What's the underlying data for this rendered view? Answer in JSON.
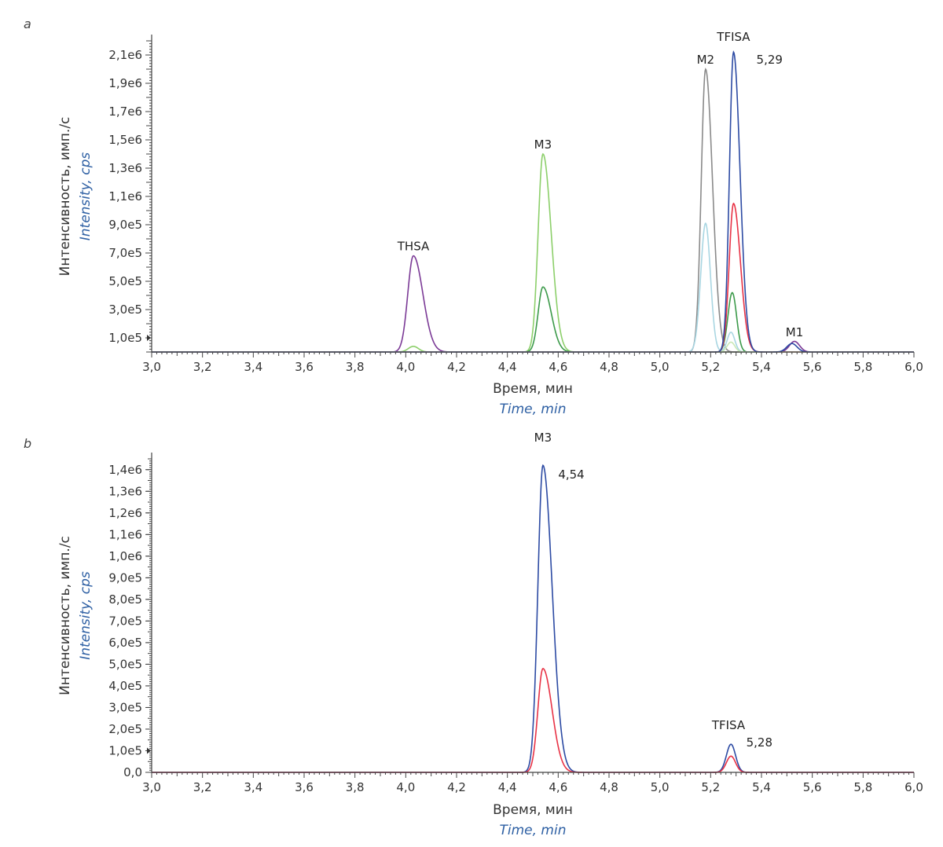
{
  "chart_data": [
    {
      "panel": "a",
      "type": "line",
      "xlabel_ru": "Время, мин",
      "xlabel_en": "Time, min",
      "ylabel_ru": "Интенсивность, имп./с",
      "ylabel_en": "Intensity, cps",
      "xlim": [
        3.0,
        6.0
      ],
      "ylim": [
        0,
        2200000
      ],
      "x_ticks": [
        {
          "v": 3.0,
          "label": "3,0"
        },
        {
          "v": 3.2,
          "label": "3,2"
        },
        {
          "v": 3.4,
          "label": "3,4"
        },
        {
          "v": 3.6,
          "label": "3,6"
        },
        {
          "v": 3.8,
          "label": "3,8"
        },
        {
          "v": 4.0,
          "label": "4,0"
        },
        {
          "v": 4.2,
          "label": "4,2"
        },
        {
          "v": 4.4,
          "label": "4,4"
        },
        {
          "v": 4.6,
          "label": "4,6"
        },
        {
          "v": 4.8,
          "label": "4,8"
        },
        {
          "v": 5.0,
          "label": "5,0"
        },
        {
          "v": 5.2,
          "label": "5,2"
        },
        {
          "v": 5.4,
          "label": "5,4"
        },
        {
          "v": 5.6,
          "label": "5,6"
        },
        {
          "v": 5.8,
          "label": "5,8"
        },
        {
          "v": 6.0,
          "label": "6,0"
        }
      ],
      "y_ticks": [
        {
          "v": 100000,
          "label": "1,0e5"
        },
        {
          "v": 300000,
          "label": "3,0e5"
        },
        {
          "v": 500000,
          "label": "5,0e5"
        },
        {
          "v": 700000,
          "label": "7,0e5"
        },
        {
          "v": 900000,
          "label": "9,0e5"
        },
        {
          "v": 1100000,
          "label": "1,1e6"
        },
        {
          "v": 1300000,
          "label": "1,3e6"
        },
        {
          "v": 1500000,
          "label": "1,5e6"
        },
        {
          "v": 1700000,
          "label": "1,7e6"
        },
        {
          "v": 1900000,
          "label": "1,9e6"
        },
        {
          "v": 2100000,
          "label": "2,1e6"
        }
      ],
      "series": [
        {
          "color": "#7b3a96",
          "peaks": [
            {
              "x": 4.03,
              "h": 680000,
              "w": 0.022,
              "tail": 0.7
            },
            {
              "x": 5.53,
              "h": 75000,
              "w": 0.02
            }
          ]
        },
        {
          "color": "#8ccf6a",
          "peaks": [
            {
              "x": 4.03,
              "h": 40000,
              "w": 0.02
            },
            {
              "x": 4.54,
              "h": 1400000,
              "w": 0.019,
              "tail": 0.7
            }
          ]
        },
        {
          "color": "#3c9a4a",
          "peaks": [
            {
              "x": 4.54,
              "h": 460000,
              "w": 0.019,
              "tail": 0.7
            },
            {
              "x": 5.285,
              "h": 420000,
              "w": 0.017
            }
          ]
        },
        {
          "color": "#8a8a8a",
          "peaks": [
            {
              "x": 5.18,
              "h": 2000000,
              "w": 0.017,
              "tail": 0.6
            }
          ]
        },
        {
          "color": "#a9d6e2",
          "peaks": [
            {
              "x": 5.18,
              "h": 910000,
              "w": 0.019
            },
            {
              "x": 5.28,
              "h": 140000,
              "w": 0.015
            }
          ]
        },
        {
          "color": "#e83245",
          "peaks": [
            {
              "x": 5.29,
              "h": 1050000,
              "w": 0.017,
              "tail": 0.6
            }
          ]
        },
        {
          "color": "#c9e8b6",
          "peaks": [
            {
              "x": 5.28,
              "h": 70000,
              "w": 0.015
            }
          ]
        },
        {
          "color": "#2c4aa3",
          "peaks": [
            {
              "x": 5.29,
              "h": 2120000,
              "w": 0.016,
              "tail": 0.6
            },
            {
              "x": 5.52,
              "h": 60000,
              "w": 0.02
            }
          ]
        }
      ],
      "annotations": [
        {
          "text": "THSA",
          "x": 4.03,
          "y": 720000
        },
        {
          "text": "M3",
          "x": 4.54,
          "y": 1440000
        },
        {
          "text": "M2",
          "x": 5.18,
          "y": 2040000
        },
        {
          "text": "TFISA",
          "x": 5.29,
          "y": 2200000
        },
        {
          "text": "5,29",
          "x": 5.38,
          "y": 2040000,
          "kind": "rt"
        },
        {
          "text": "M1",
          "x": 5.53,
          "y": 110000
        }
      ]
    },
    {
      "panel": "b",
      "type": "line",
      "xlabel_ru": "Время, мин",
      "xlabel_en": "Time, min",
      "ylabel_ru": "Интенсивность, имп./с",
      "ylabel_en": "Intensity, cps",
      "xlim": [
        3.0,
        6.0
      ],
      "ylim": [
        0,
        1450000
      ],
      "x_ticks": [
        {
          "v": 3.0,
          "label": "3,0"
        },
        {
          "v": 3.2,
          "label": "3,2"
        },
        {
          "v": 3.4,
          "label": "3,4"
        },
        {
          "v": 3.6,
          "label": "3,6"
        },
        {
          "v": 3.8,
          "label": "3,8"
        },
        {
          "v": 4.0,
          "label": "4,0"
        },
        {
          "v": 4.2,
          "label": "4,2"
        },
        {
          "v": 4.4,
          "label": "4,4"
        },
        {
          "v": 4.6,
          "label": "4,6"
        },
        {
          "v": 4.8,
          "label": "4,8"
        },
        {
          "v": 5.0,
          "label": "5,0"
        },
        {
          "v": 5.2,
          "label": "5,2"
        },
        {
          "v": 5.4,
          "label": "5,4"
        },
        {
          "v": 5.6,
          "label": "5,6"
        },
        {
          "v": 5.8,
          "label": "5,8"
        },
        {
          "v": 6.0,
          "label": "6,0"
        }
      ],
      "y_ticks": [
        {
          "v": 0,
          "label": "0,0"
        },
        {
          "v": 100000,
          "label": "1,0e5"
        },
        {
          "v": 200000,
          "label": "2,0e5"
        },
        {
          "v": 300000,
          "label": "3,0e5"
        },
        {
          "v": 400000,
          "label": "4,0e5"
        },
        {
          "v": 500000,
          "label": "5,0e5"
        },
        {
          "v": 600000,
          "label": "6,0e5"
        },
        {
          "v": 700000,
          "label": "7,0e5"
        },
        {
          "v": 800000,
          "label": "8,0e5"
        },
        {
          "v": 900000,
          "label": "9,0e5"
        },
        {
          "v": 1000000,
          "label": "1,0e6"
        },
        {
          "v": 1100000,
          "label": "1,1e6"
        },
        {
          "v": 1200000,
          "label": "1,2e6"
        },
        {
          "v": 1300000,
          "label": "1,3e6"
        },
        {
          "v": 1400000,
          "label": "1,4e6"
        }
      ],
      "series": [
        {
          "color": "#2c4aa3",
          "peaks": [
            {
              "x": 4.54,
              "h": 1420000,
              "w": 0.02,
              "tail": 0.8
            },
            {
              "x": 5.28,
              "h": 130000,
              "w": 0.018
            }
          ]
        },
        {
          "color": "#e83245",
          "peaks": [
            {
              "x": 4.54,
              "h": 480000,
              "w": 0.02,
              "tail": 0.8
            },
            {
              "x": 5.28,
              "h": 75000,
              "w": 0.018
            }
          ]
        }
      ],
      "annotations": [
        {
          "text": "M3",
          "x": 4.54,
          "y": 1530000
        },
        {
          "text": "4,54",
          "x": 4.6,
          "y": 1360000,
          "kind": "rt"
        },
        {
          "text": "TFISA",
          "x": 5.27,
          "y": 200000
        },
        {
          "text": "5,28",
          "x": 5.34,
          "y": 120000,
          "kind": "rt"
        }
      ]
    }
  ]
}
